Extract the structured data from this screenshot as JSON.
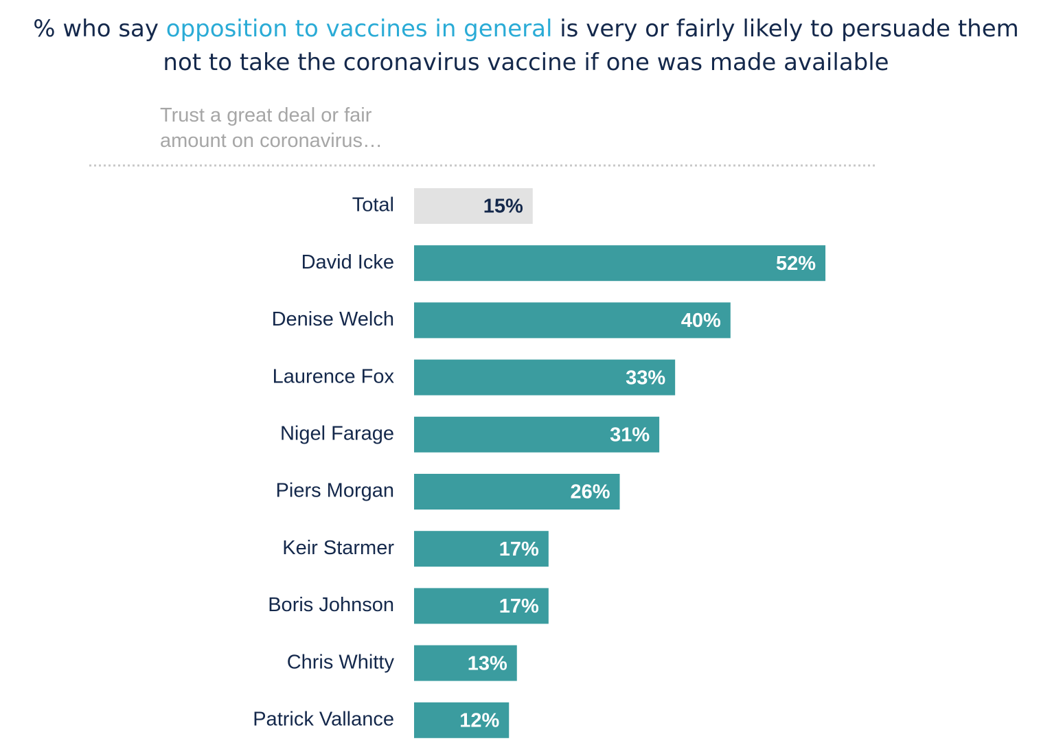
{
  "chart_data": {
    "type": "bar",
    "title": [
      "% who say",
      "opposition to vaccines in general",
      "is very or fairly likely to persuade them not to take the coronavirus vaccine if one was made available"
    ],
    "title_highlight_color": "#2aabd6",
    "subtitle": "Trust a great deal or fair amount on coronavirus…",
    "categories": [
      "Total",
      "David Icke",
      "Denise Welch",
      "Laurence Fox",
      "Nigel Farage",
      "Piers Morgan",
      "Keir Starmer",
      "Boris Johnson",
      "Chris Whitty",
      "Patrick Vallance"
    ],
    "values": [
      15,
      52,
      40,
      33,
      31,
      26,
      17,
      17,
      13,
      12
    ],
    "value_labels": [
      "15%",
      "52%",
      "40%",
      "33%",
      "31%",
      "26%",
      "17%",
      "17%",
      "13%",
      "12%"
    ],
    "colors": [
      "#e2e2e2",
      "#3b9c9f",
      "#3b9c9f",
      "#3b9c9f",
      "#3b9c9f",
      "#3b9c9f",
      "#3b9c9f",
      "#3b9c9f",
      "#3b9c9f",
      "#3b9c9f"
    ],
    "label_colors": [
      "#14284b",
      "#ffffff",
      "#ffffff",
      "#ffffff",
      "#ffffff",
      "#ffffff",
      "#ffffff",
      "#ffffff",
      "#ffffff",
      "#ffffff"
    ]
  }
}
